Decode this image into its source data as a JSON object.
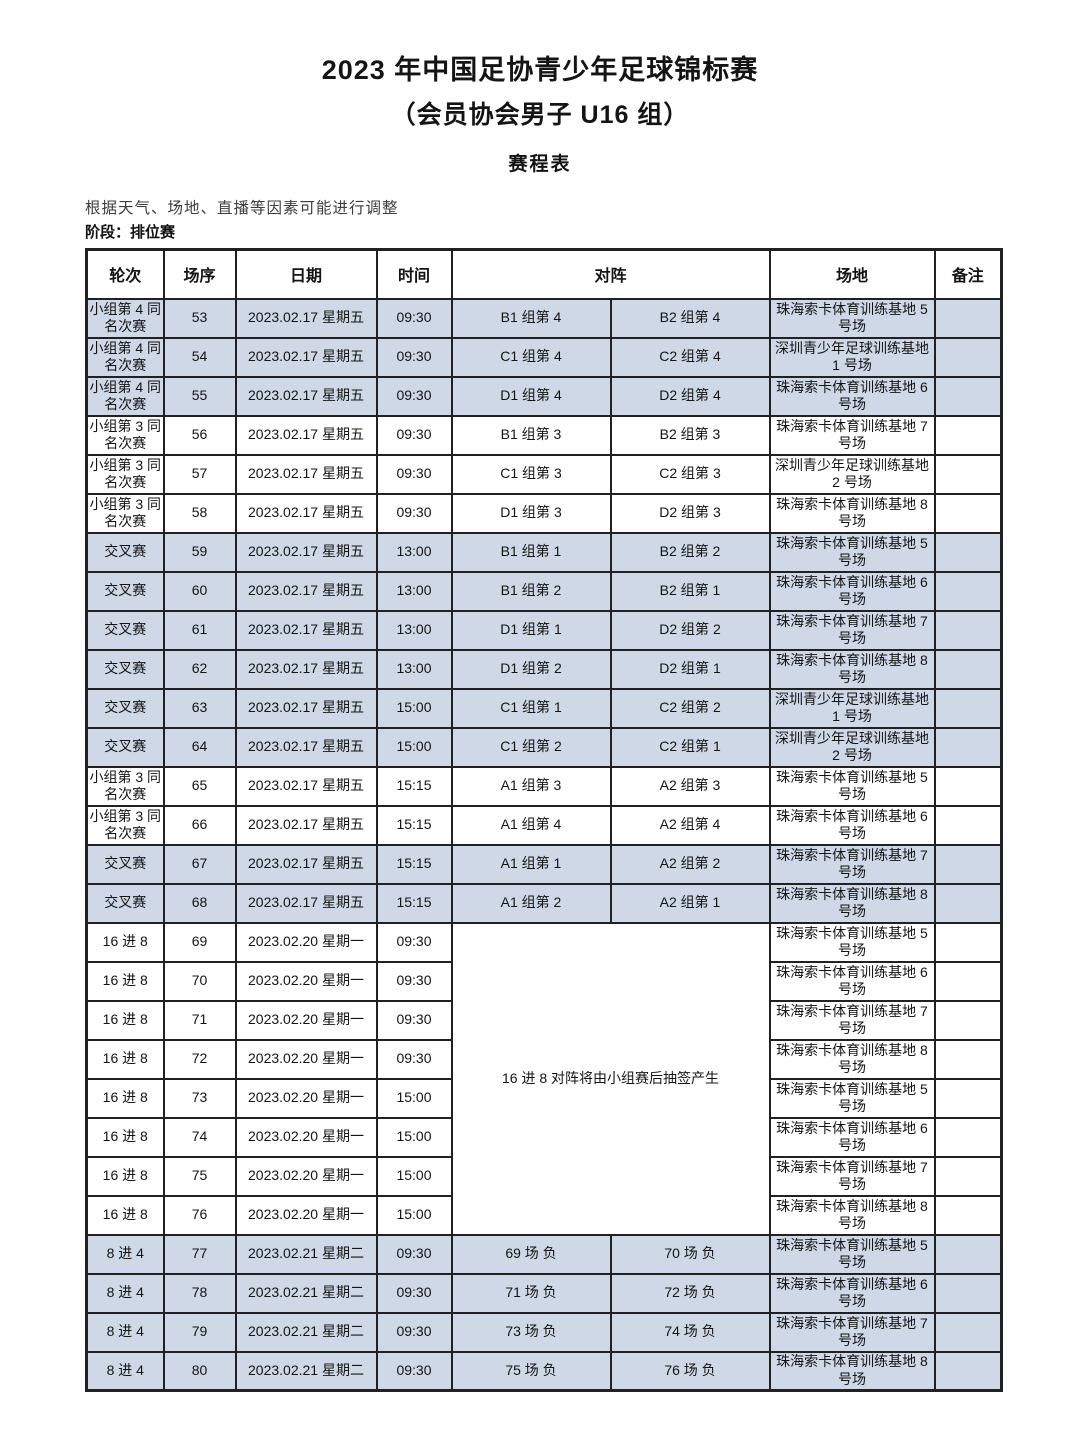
{
  "page": {
    "title_line1": "2023 年中国足协青少年足球锦标赛",
    "title_line2": "（会员协会男子 U16 组）",
    "title_line3": "赛程表",
    "note": "根据天气、场地、直播等因素可能进行调整",
    "stage_label": "阶段：排位赛"
  },
  "colors": {
    "row_shade": "#ced8e6",
    "table_border": "#212121"
  },
  "table": {
    "headers": [
      "轮次",
      "场序",
      "日期",
      "时间",
      "对阵",
      "场地",
      "备注"
    ],
    "merged_matchup_text": "16 进 8 对阵将由小组赛后抽签产生",
    "rows": [
      {
        "round": "小组第 4 同名次赛",
        "no": "53",
        "date": "2023.02.17 星期五",
        "time": "09:30",
        "home": "B1 组第 4",
        "away": "B2 组第 4",
        "venue": "珠海索卡体育训练基地 5 号场",
        "note": "",
        "shaded": true,
        "merged": false
      },
      {
        "round": "小组第 4 同名次赛",
        "no": "54",
        "date": "2023.02.17 星期五",
        "time": "09:30",
        "home": "C1 组第 4",
        "away": "C2 组第 4",
        "venue": "深圳青少年足球训练基地 1 号场",
        "note": "",
        "shaded": true,
        "merged": false
      },
      {
        "round": "小组第 4 同名次赛",
        "no": "55",
        "date": "2023.02.17 星期五",
        "time": "09:30",
        "home": "D1 组第 4",
        "away": "D2 组第 4",
        "venue": "珠海索卡体育训练基地 6 号场",
        "note": "",
        "shaded": true,
        "merged": false
      },
      {
        "round": "小组第 3 同名次赛",
        "no": "56",
        "date": "2023.02.17 星期五",
        "time": "09:30",
        "home": "B1 组第 3",
        "away": "B2 组第 3",
        "venue": "珠海索卡体育训练基地 7 号场",
        "note": "",
        "shaded": false,
        "merged": false
      },
      {
        "round": "小组第 3 同名次赛",
        "no": "57",
        "date": "2023.02.17 星期五",
        "time": "09:30",
        "home": "C1 组第 3",
        "away": "C2 组第 3",
        "venue": "深圳青少年足球训练基地 2 号场",
        "note": "",
        "shaded": false,
        "merged": false
      },
      {
        "round": "小组第 3 同名次赛",
        "no": "58",
        "date": "2023.02.17 星期五",
        "time": "09:30",
        "home": "D1 组第 3",
        "away": "D2 组第 3",
        "venue": "珠海索卡体育训练基地 8 号场",
        "note": "",
        "shaded": false,
        "merged": false
      },
      {
        "round": "交叉赛",
        "no": "59",
        "date": "2023.02.17 星期五",
        "time": "13:00",
        "home": "B1 组第 1",
        "away": "B2 组第 2",
        "venue": "珠海索卡体育训练基地 5 号场",
        "note": "",
        "shaded": true,
        "merged": false
      },
      {
        "round": "交叉赛",
        "no": "60",
        "date": "2023.02.17 星期五",
        "time": "13:00",
        "home": "B1 组第 2",
        "away": "B2 组第 1",
        "venue": "珠海索卡体育训练基地 6 号场",
        "note": "",
        "shaded": true,
        "merged": false
      },
      {
        "round": "交叉赛",
        "no": "61",
        "date": "2023.02.17 星期五",
        "time": "13:00",
        "home": "D1 组第 1",
        "away": "D2 组第 2",
        "venue": "珠海索卡体育训练基地 7 号场",
        "note": "",
        "shaded": true,
        "merged": false
      },
      {
        "round": "交叉赛",
        "no": "62",
        "date": "2023.02.17 星期五",
        "time": "13:00",
        "home": "D1 组第 2",
        "away": "D2 组第 1",
        "venue": "珠海索卡体育训练基地 8 号场",
        "note": "",
        "shaded": true,
        "merged": false
      },
      {
        "round": "交叉赛",
        "no": "63",
        "date": "2023.02.17 星期五",
        "time": "15:00",
        "home": "C1 组第 1",
        "away": "C2 组第 2",
        "venue": "深圳青少年足球训练基地 1 号场",
        "note": "",
        "shaded": true,
        "merged": false
      },
      {
        "round": "交叉赛",
        "no": "64",
        "date": "2023.02.17 星期五",
        "time": "15:00",
        "home": "C1 组第 2",
        "away": "C2 组第 1",
        "venue": "深圳青少年足球训练基地 2 号场",
        "note": "",
        "shaded": true,
        "merged": false
      },
      {
        "round": "小组第 3 同名次赛",
        "no": "65",
        "date": "2023.02.17 星期五",
        "time": "15:15",
        "home": "A1 组第 3",
        "away": "A2 组第 3",
        "venue": "珠海索卡体育训练基地 5 号场",
        "note": "",
        "shaded": false,
        "merged": false
      },
      {
        "round": "小组第 3 同名次赛",
        "no": "66",
        "date": "2023.02.17 星期五",
        "time": "15:15",
        "home": "A1 组第 4",
        "away": "A2 组第 4",
        "venue": "珠海索卡体育训练基地 6 号场",
        "note": "",
        "shaded": false,
        "merged": false
      },
      {
        "round": "交叉赛",
        "no": "67",
        "date": "2023.02.17 星期五",
        "time": "15:15",
        "home": "A1 组第 1",
        "away": "A2 组第 2",
        "venue": "珠海索卡体育训练基地 7 号场",
        "note": "",
        "shaded": true,
        "merged": false
      },
      {
        "round": "交叉赛",
        "no": "68",
        "date": "2023.02.17 星期五",
        "time": "15:15",
        "home": "A1 组第 2",
        "away": "A2 组第 1",
        "venue": "珠海索卡体育训练基地 8 号场",
        "note": "",
        "shaded": true,
        "merged": false
      },
      {
        "round": "16 进 8",
        "no": "69",
        "date": "2023.02.20 星期一",
        "time": "09:30",
        "venue": "珠海索卡体育训练基地 5 号场",
        "note": "",
        "shaded": false,
        "merged": true
      },
      {
        "round": "16 进 8",
        "no": "70",
        "date": "2023.02.20 星期一",
        "time": "09:30",
        "venue": "珠海索卡体育训练基地 6 号场",
        "note": "",
        "shaded": false,
        "merged": true
      },
      {
        "round": "16 进 8",
        "no": "71",
        "date": "2023.02.20 星期一",
        "time": "09:30",
        "venue": "珠海索卡体育训练基地 7 号场",
        "note": "",
        "shaded": false,
        "merged": true
      },
      {
        "round": "16 进 8",
        "no": "72",
        "date": "2023.02.20 星期一",
        "time": "09:30",
        "venue": "珠海索卡体育训练基地 8 号场",
        "note": "",
        "shaded": false,
        "merged": true
      },
      {
        "round": "16 进 8",
        "no": "73",
        "date": "2023.02.20 星期一",
        "time": "15:00",
        "venue": "珠海索卡体育训练基地 5 号场",
        "note": "",
        "shaded": false,
        "merged": true
      },
      {
        "round": "16 进 8",
        "no": "74",
        "date": "2023.02.20 星期一",
        "time": "15:00",
        "venue": "珠海索卡体育训练基地 6 号场",
        "note": "",
        "shaded": false,
        "merged": true
      },
      {
        "round": "16 进 8",
        "no": "75",
        "date": "2023.02.20 星期一",
        "time": "15:00",
        "venue": "珠海索卡体育训练基地 7 号场",
        "note": "",
        "shaded": false,
        "merged": true
      },
      {
        "round": "16 进 8",
        "no": "76",
        "date": "2023.02.20 星期一",
        "time": "15:00",
        "venue": "珠海索卡体育训练基地 8 号场",
        "note": "",
        "shaded": false,
        "merged": true
      },
      {
        "round": "8 进 4",
        "no": "77",
        "date": "2023.02.21 星期二",
        "time": "09:30",
        "home": "69 场 负",
        "away": "70 场 负",
        "venue": "珠海索卡体育训练基地 5 号场",
        "note": "",
        "shaded": true,
        "merged": false
      },
      {
        "round": "8 进 4",
        "no": "78",
        "date": "2023.02.21 星期二",
        "time": "09:30",
        "home": "71 场 负",
        "away": "72 场 负",
        "venue": "珠海索卡体育训练基地 6 号场",
        "note": "",
        "shaded": true,
        "merged": false
      },
      {
        "round": "8 进 4",
        "no": "79",
        "date": "2023.02.21 星期二",
        "time": "09:30",
        "home": "73 场 负",
        "away": "74 场 负",
        "venue": "珠海索卡体育训练基地 7 号场",
        "note": "",
        "shaded": true,
        "merged": false
      },
      {
        "round": "8 进 4",
        "no": "80",
        "date": "2023.02.21 星期二",
        "time": "09:30",
        "home": "75 场 负",
        "away": "76 场 负",
        "venue": "珠海索卡体育训练基地 8 号场",
        "note": "",
        "shaded": true,
        "merged": false
      }
    ]
  }
}
